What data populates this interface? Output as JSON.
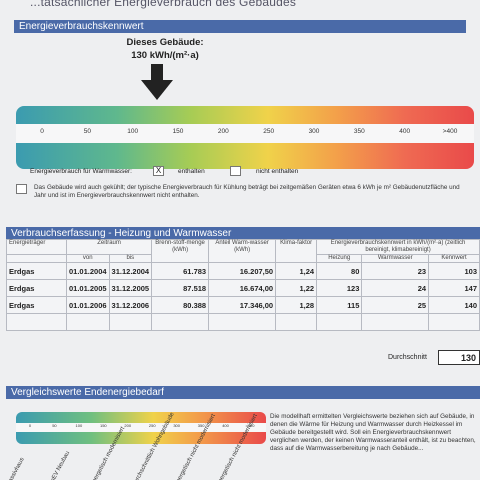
{
  "top_title": "...tatsächlicher Energieverbrauch des Gebäudes",
  "section1": {
    "header": "Energieverbrauchskennwert",
    "building_label_line1": "Dieses Gebäude:",
    "building_label_line2": "130 kWh/(m²·a)",
    "ticks": [
      "0",
      "50",
      "100",
      "150",
      "200",
      "250",
      "300",
      "350",
      "400",
      ">400"
    ],
    "hot_water_label": "Energieverbrauch für Warmwasser:",
    "included_mark": "X",
    "included_label": "enthalten",
    "not_included_label": "nicht enthalten",
    "note": "Das Gebäude wird auch gekühlt; der typische Energieverbrauch für Kühlung beträgt bei zeitgemäßen Geräten etwa 6 kWh je m² Gebäudenutzfläche und Jahr und ist im Energieverbrauchskennwert nicht enthalten."
  },
  "section2": {
    "header": "Verbrauchserfassung - Heizung und Warmwasser",
    "columns": {
      "carrier": "Energieträger",
      "period": "Zeitraum",
      "from": "von",
      "to": "bis",
      "fuel": "Brenn-stoff-menge (kWh)",
      "hot_water_share": "Anteil Warm-wasser (kWh)",
      "climate_factor": "Klima-faktor",
      "kennwert": "Energieverbrauchskennwert in kWh/(m²·a) (zeitlich bereinigt, klimabereinigt)",
      "heating": "Heizung",
      "hot_water": "Warmwasser",
      "kennwert_short": "Kennwert"
    },
    "rows": [
      {
        "carrier": "Erdgas",
        "from": "01.01.2004",
        "to": "31.12.2004",
        "fuel": "61.783",
        "hw": "16.207,50",
        "climate": "1,24",
        "heating": "80",
        "water": "23",
        "kennwert": "103"
      },
      {
        "carrier": "Erdgas",
        "from": "01.01.2005",
        "to": "31.12.2005",
        "fuel": "87.518",
        "hw": "16.674,00",
        "climate": "1,22",
        "heating": "123",
        "water": "24",
        "kennwert": "147"
      },
      {
        "carrier": "Erdgas",
        "from": "01.01.2006",
        "to": "31.12.2006",
        "fuel": "80.388",
        "hw": "17.346,00",
        "climate": "1,28",
        "heating": "115",
        "water": "25",
        "kennwert": "140"
      }
    ],
    "average_label": "Durchschnitt",
    "average_value": "130"
  },
  "section3": {
    "header": "Vergleichswerte Endenergiebedarf",
    "ticks": [
      "0",
      "50",
      "100",
      "150",
      "200",
      "250",
      "300",
      "350",
      "400",
      ">400"
    ],
    "rotated_labels": [
      "Passivhaus",
      "EnEV Neubau",
      "energetisch modernisiert",
      "durchschnittlich Wohngebäude",
      "energetisch nicht modernisiert",
      "energetisch nicht modernisiert"
    ],
    "side_text": "Die modellhaft ermittelten Vergleichswerte beziehen sich auf Gebäude, in denen die Wärme für Heizung und Warmwasser durch Heizkessel im Gebäude bereitgestellt wird. Soll ein Energieverbrauchskennwert verglichen werden, der keinen Warmwasseranteil enthält, ist zu beachten, dass auf die Warmwasserbereitung je nach Gebäude..."
  }
}
